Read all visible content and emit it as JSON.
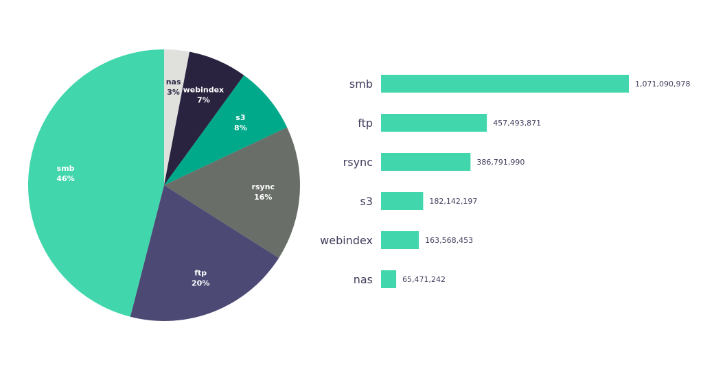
{
  "chart_data": [
    {
      "type": "pie",
      "slices": [
        {
          "label": "nas",
          "percent_label": "3%",
          "value": 3,
          "color": "#e0e0dd",
          "text_color": "#2f2a45"
        },
        {
          "label": "webindex",
          "percent_label": "7%",
          "value": 7,
          "color": "#29233f",
          "text_color": "#ffffff"
        },
        {
          "label": "s3",
          "percent_label": "8%",
          "value": 8,
          "color": "#00a98a",
          "text_color": "#ffffff"
        },
        {
          "label": "rsync",
          "percent_label": "16%",
          "value": 16,
          "color": "#696f68",
          "text_color": "#ffffff"
        },
        {
          "label": "ftp",
          "percent_label": "20%",
          "value": 20,
          "color": "#4c4a74",
          "text_color": "#ffffff"
        },
        {
          "label": "smb",
          "percent_label": "46%",
          "value": 46,
          "color": "#42d6ac",
          "text_color": "#ffffff"
        }
      ]
    },
    {
      "type": "bar",
      "orientation": "horizontal",
      "bar_color": "#42d6ac",
      "label_color": "#3f3d5c",
      "categories": [
        "smb",
        "ftp",
        "rsync",
        "s3",
        "webindex",
        "nas"
      ],
      "values": [
        1071090978,
        457493871,
        386791990,
        182142197,
        163568453,
        65471242
      ],
      "value_labels": [
        "1,071,090,978",
        "457,493,871",
        "386,791,990",
        "182,142,197",
        "163,568,453",
        "65,471,242"
      ]
    }
  ]
}
